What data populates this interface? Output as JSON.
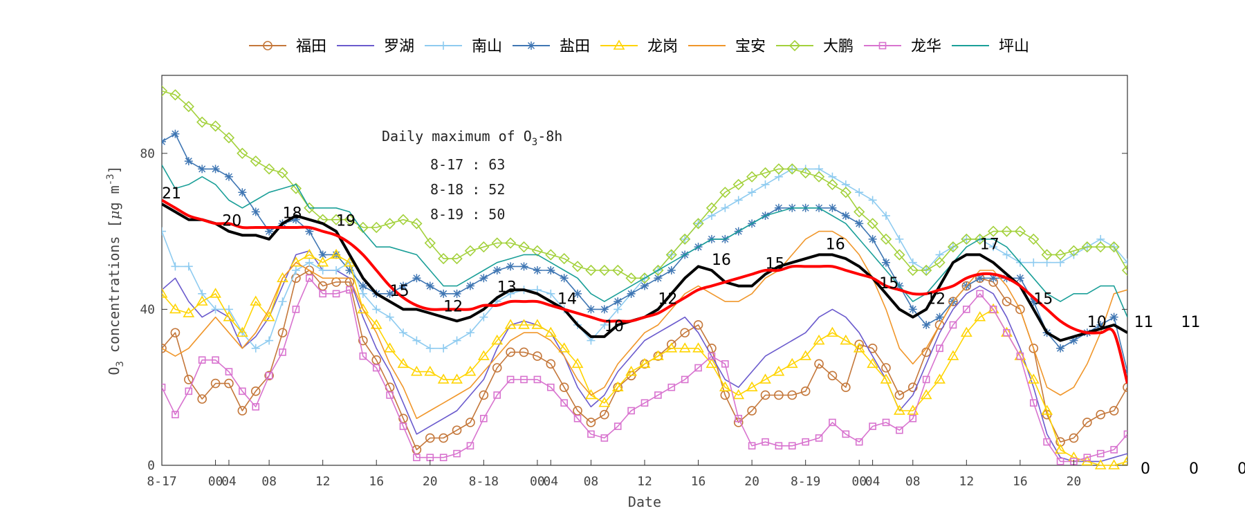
{
  "chart_data": {
    "type": "line",
    "xlabel": "Date",
    "ylabel": "O3 concentrations [μg m-3]",
    "ylabel_parts": [
      "O",
      "3",
      " concentrations [",
      "μ",
      "g m",
      "-3",
      "]"
    ],
    "ylim": [
      0,
      100
    ],
    "yticks": [
      0,
      40,
      80
    ],
    "xlim": [
      0,
      72
    ],
    "xticks": [
      {
        "x": 0,
        "label": "8-17"
      },
      {
        "x": 4,
        "label": "00"
      },
      {
        "x": 5,
        "label": "04"
      },
      {
        "x": 8,
        "label": "08"
      },
      {
        "x": 12,
        "label": "12"
      },
      {
        "x": 16,
        "label": "16"
      },
      {
        "x": 20,
        "label": "20"
      },
      {
        "x": 24,
        "label": "8-18"
      },
      {
        "x": 28,
        "label": "00"
      },
      {
        "x": 29,
        "label": "04"
      },
      {
        "x": 32,
        "label": "08"
      },
      {
        "x": 36,
        "label": "12"
      },
      {
        "x": 40,
        "label": "16"
      },
      {
        "x": 44,
        "label": "20"
      },
      {
        "x": 48,
        "label": "8-19"
      },
      {
        "x": 52,
        "label": "00"
      },
      {
        "x": 53,
        "label": "04"
      },
      {
        "x": 56,
        "label": "08"
      },
      {
        "x": 60,
        "label": "12"
      },
      {
        "x": 64,
        "label": "16"
      },
      {
        "x": 68,
        "label": "20"
      }
    ],
    "annotation": {
      "title_parts": [
        "Daily maximum of O",
        "3",
        "-8h"
      ],
      "lines": [
        "8-17 : 63",
        "8-18 : 52",
        "8-19 : 50"
      ]
    },
    "edge_labels": [
      "0",
      "0",
      "0"
    ],
    "grid": false,
    "legend_position": "top-center",
    "series": [
      {
        "name": "福田",
        "color": "#c4773a",
        "marker": "circle",
        "markerEvery": 1,
        "values": [
          30,
          34,
          22,
          17,
          21,
          21,
          14,
          19,
          23,
          34,
          48,
          50,
          46,
          47,
          47,
          32,
          27,
          20,
          12,
          4,
          7,
          7,
          9,
          11,
          18,
          25,
          29,
          29,
          28,
          26,
          20,
          14,
          11,
          13,
          20,
          23,
          26,
          28,
          31,
          34,
          36,
          30,
          18,
          11,
          14,
          18,
          18,
          18,
          19,
          26,
          23,
          20,
          31,
          30,
          25,
          18,
          20,
          29,
          36,
          42,
          46,
          48,
          47,
          42,
          40,
          30,
          13,
          6,
          7,
          11,
          13,
          14,
          20
        ]
      },
      {
        "name": "罗湖",
        "color": "#6a5acd",
        "marker": "none",
        "values": [
          45,
          48,
          42,
          38,
          40,
          38,
          30,
          33,
          38,
          46,
          54,
          55,
          50,
          50,
          48,
          38,
          30,
          24,
          16,
          8,
          10,
          12,
          14,
          18,
          22,
          30,
          36,
          37,
          36,
          34,
          28,
          20,
          15,
          18,
          24,
          28,
          32,
          34,
          36,
          38,
          34,
          28,
          22,
          20,
          24,
          28,
          30,
          32,
          34,
          38,
          40,
          38,
          34,
          28,
          22,
          14,
          18,
          26,
          34,
          40,
          44,
          46,
          44,
          38,
          30,
          20,
          8,
          2,
          1,
          1,
          1,
          2,
          3
        ]
      },
      {
        "name": "南山",
        "color": "#8ecbf0",
        "marker": "plus",
        "markerEvery": 1,
        "values": [
          60,
          51,
          51,
          44,
          40,
          40,
          34,
          30,
          32,
          42,
          50,
          52,
          50,
          50,
          52,
          44,
          40,
          38,
          34,
          32,
          30,
          30,
          32,
          34,
          38,
          42,
          44,
          45,
          45,
          44,
          40,
          36,
          32,
          36,
          40,
          44,
          48,
          50,
          54,
          58,
          62,
          64,
          66,
          68,
          70,
          72,
          74,
          76,
          76,
          76,
          74,
          72,
          70,
          68,
          64,
          58,
          52,
          50,
          54,
          56,
          58,
          58,
          56,
          54,
          52,
          52,
          52,
          52,
          54,
          56,
          58,
          56,
          52
        ]
      },
      {
        "name": "盐田",
        "color": "#3f76b3",
        "marker": "asterisk",
        "markerEvery": 1,
        "values": [
          83,
          85,
          78,
          76,
          76,
          74,
          70,
          65,
          60,
          62,
          63,
          60,
          54,
          54,
          50,
          46,
          44,
          44,
          46,
          48,
          46,
          44,
          44,
          46,
          48,
          50,
          51,
          51,
          50,
          50,
          48,
          44,
          40,
          40,
          42,
          44,
          46,
          48,
          50,
          54,
          56,
          58,
          58,
          60,
          62,
          64,
          66,
          66,
          66,
          66,
          66,
          64,
          62,
          58,
          52,
          46,
          40,
          36,
          38,
          42,
          46,
          48,
          48,
          48,
          48,
          42,
          34,
          30,
          32,
          34,
          36,
          38,
          24
        ]
      },
      {
        "name": "龙岗",
        "color": "#ffd400",
        "marker": "triangle",
        "markerEvery": 1,
        "values": [
          44,
          40,
          39,
          42,
          44,
          38,
          34,
          42,
          38,
          48,
          52,
          54,
          52,
          54,
          52,
          40,
          36,
          30,
          26,
          24,
          24,
          22,
          22,
          24,
          28,
          32,
          36,
          36,
          36,
          34,
          30,
          26,
          18,
          16,
          20,
          24,
          26,
          28,
          30,
          30,
          30,
          26,
          20,
          18,
          20,
          22,
          24,
          26,
          28,
          32,
          34,
          32,
          30,
          26,
          22,
          14,
          14,
          18,
          22,
          28,
          34,
          38,
          40,
          34,
          28,
          22,
          14,
          4,
          2,
          1,
          0,
          0,
          1
        ]
      },
      {
        "name": "宝安",
        "color": "#f0962a",
        "marker": "none",
        "values": [
          30,
          28,
          30,
          34,
          38,
          34,
          30,
          34,
          40,
          48,
          52,
          50,
          48,
          48,
          48,
          40,
          34,
          26,
          20,
          12,
          14,
          16,
          18,
          20,
          24,
          28,
          32,
          34,
          34,
          32,
          28,
          22,
          18,
          20,
          26,
          30,
          34,
          36,
          40,
          44,
          46,
          44,
          42,
          42,
          44,
          48,
          50,
          54,
          58,
          60,
          60,
          58,
          54,
          48,
          40,
          30,
          26,
          30,
          36,
          42,
          46,
          50,
          50,
          46,
          40,
          30,
          20,
          18,
          20,
          26,
          34,
          44,
          45
        ]
      },
      {
        "name": "大鹏",
        "color": "#a3d13b",
        "marker": "diamond",
        "markerEvery": 1,
        "values": [
          96,
          95,
          92,
          88,
          87,
          84,
          80,
          78,
          76,
          75,
          71,
          66,
          63,
          63,
          63,
          61,
          61,
          62,
          63,
          62,
          57,
          53,
          53,
          55,
          56,
          57,
          57,
          56,
          55,
          54,
          53,
          51,
          50,
          50,
          50,
          48,
          48,
          50,
          54,
          58,
          62,
          66,
          70,
          72,
          74,
          75,
          76,
          76,
          75,
          74,
          72,
          70,
          65,
          62,
          58,
          54,
          50,
          50,
          52,
          56,
          58,
          58,
          60,
          60,
          60,
          58,
          54,
          54,
          55,
          56,
          56,
          56,
          50
        ]
      },
      {
        "name": "龙华",
        "color": "#d873cf",
        "marker": "square",
        "markerEvery": 1,
        "values": [
          20,
          13,
          19,
          27,
          27,
          24,
          19,
          15,
          23,
          29,
          40,
          48,
          44,
          44,
          45,
          28,
          25,
          18,
          10,
          2,
          2,
          2,
          3,
          5,
          12,
          18,
          22,
          22,
          22,
          20,
          16,
          12,
          8,
          7,
          10,
          14,
          16,
          18,
          20,
          22,
          25,
          28,
          26,
          12,
          5,
          6,
          5,
          5,
          6,
          7,
          11,
          8,
          6,
          10,
          11,
          9,
          12,
          22,
          30,
          36,
          40,
          44,
          40,
          34,
          28,
          16,
          6,
          1,
          1,
          2,
          3,
          4,
          8
        ]
      },
      {
        "name": "坪山",
        "color": "#1a9f98",
        "marker": "none",
        "values": [
          77,
          71,
          72,
          74,
          72,
          68,
          66,
          68,
          70,
          71,
          72,
          66,
          66,
          66,
          65,
          60,
          56,
          56,
          55,
          54,
          50,
          46,
          46,
          48,
          50,
          52,
          53,
          54,
          54,
          52,
          50,
          48,
          44,
          42,
          44,
          46,
          48,
          50,
          52,
          54,
          56,
          58,
          58,
          60,
          62,
          64,
          65,
          66,
          66,
          66,
          64,
          62,
          58,
          54,
          50,
          46,
          42,
          44,
          48,
          52,
          56,
          58,
          58,
          56,
          52,
          48,
          44,
          42,
          44,
          44,
          46,
          46,
          38
        ]
      },
      {
        "name": "",
        "color": "#000000",
        "marker": "none",
        "width": 4,
        "values": [
          67,
          65,
          63,
          63,
          62,
          60,
          59,
          59,
          58,
          62,
          64,
          63,
          62,
          60,
          54,
          48,
          44,
          42,
          40,
          40,
          39,
          38,
          37,
          38,
          40,
          43,
          45,
          45,
          44,
          42,
          40,
          36,
          33,
          33,
          36,
          37,
          38,
          40,
          44,
          48,
          51,
          50,
          47,
          46,
          46,
          49,
          51,
          52,
          53,
          54,
          54,
          53,
          51,
          48,
          44,
          40,
          38,
          40,
          46,
          52,
          54,
          54,
          52,
          49,
          46,
          40,
          34,
          32,
          33,
          34,
          35,
          36,
          34
        ]
      },
      {
        "name": "",
        "color": "#ff0000",
        "marker": "none",
        "width": 4,
        "smooth": true,
        "values": [
          68,
          66,
          64,
          63,
          62,
          62,
          61,
          61,
          61,
          61,
          61,
          61,
          60,
          59,
          57,
          54,
          50,
          46,
          43,
          41,
          40,
          40,
          40,
          40,
          41,
          41,
          42,
          42,
          42,
          41,
          40,
          39,
          38,
          37,
          37,
          37,
          38,
          39,
          41,
          43,
          45,
          46,
          47,
          48,
          49,
          50,
          50,
          51,
          51,
          51,
          51,
          50,
          49,
          48,
          46,
          45,
          44,
          44,
          45,
          46,
          48,
          49,
          49,
          48,
          46,
          43,
          40,
          37,
          35,
          34,
          34,
          34,
          21
        ]
      }
    ],
    "daily_value_labels": [
      {
        "x": 0,
        "text": "21"
      },
      {
        "x": 4.5,
        "text": "20"
      },
      {
        "x": 9,
        "text": "18"
      },
      {
        "x": 13,
        "text": "19"
      },
      {
        "x": 17,
        "text": "15"
      },
      {
        "x": 21,
        "text": "12"
      },
      {
        "x": 25,
        "text": "13"
      },
      {
        "x": 29.5,
        "text": "14"
      },
      {
        "x": 33,
        "text": "10"
      },
      {
        "x": 37,
        "text": "12"
      },
      {
        "x": 41,
        "text": "16"
      },
      {
        "x": 45,
        "text": "15"
      },
      {
        "x": 49.5,
        "text": "16"
      },
      {
        "x": 53.5,
        "text": "15"
      },
      {
        "x": 57,
        "text": "12"
      },
      {
        "x": 61,
        "text": "17"
      },
      {
        "x": 65,
        "text": "15"
      },
      {
        "x": 69,
        "text": "10"
      },
      {
        "x": 72.5,
        "text": "11"
      },
      {
        "x": 76,
        "text": "11"
      }
    ]
  }
}
